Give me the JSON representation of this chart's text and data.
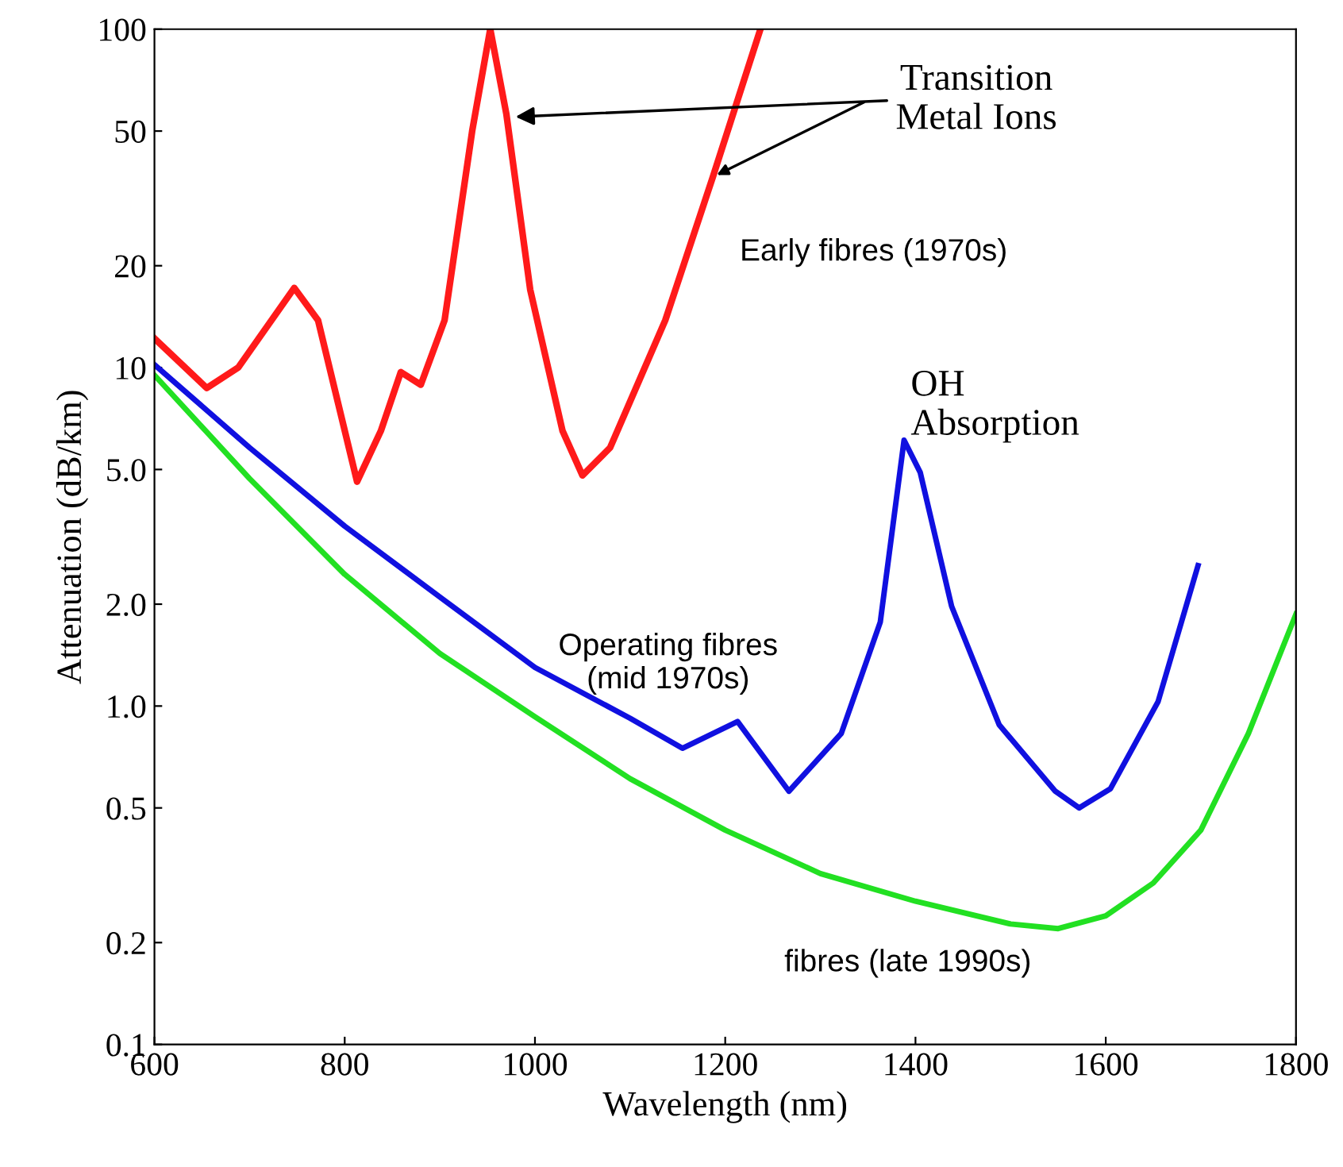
{
  "chart_data": {
    "type": "line",
    "xlabel": "Wavelength (nm)",
    "ylabel": "Attenuation (dB/km)",
    "log": "y",
    "grid": false,
    "legend": false,
    "marker": "none",
    "line_style": "solid",
    "xlim": [
      600,
      1800
    ],
    "xticks": [
      600,
      800,
      1000,
      1200,
      1400,
      1600,
      1800
    ],
    "ylim": [
      0.1,
      100
    ],
    "yticks": [
      0.1,
      0.2,
      0.5,
      {
        "value": 1,
        "label": "1.0"
      },
      {
        "value": 2,
        "label": "2.0"
      },
      {
        "value": 5,
        "label": "5.0"
      },
      10,
      20,
      50,
      100
    ],
    "series": [
      {
        "name": "Early fibres (1970s)",
        "color": "#ff1a1a",
        "x": [
          600,
          655,
          688,
          747,
          772,
          813,
          838,
          859,
          880,
          905,
          934,
          953,
          970,
          995,
          1029,
          1050,
          1079,
          1137,
          1187,
          1237
        ],
        "values": [
          12.2,
          8.7,
          10,
          17.2,
          13.8,
          4.6,
          6.5,
          9.7,
          8.9,
          13.8,
          50,
          100,
          56,
          17,
          6.5,
          4.8,
          5.8,
          13.8,
          36.6,
          100
        ]
      },
      {
        "name": "Operating fibres\n(mid 1970s)",
        "color": "#1010e0",
        "x": [
          600,
          700,
          800,
          900,
          1000,
          1100,
          1155,
          1213,
          1267,
          1322,
          1363,
          1388,
          1405,
          1438,
          1488,
          1547,
          1572,
          1605,
          1655,
          1697
        ],
        "values": [
          10.2,
          5.8,
          3.4,
          2.1,
          1.3,
          0.92,
          0.75,
          0.9,
          0.56,
          0.83,
          1.77,
          6.1,
          4.9,
          1.97,
          0.88,
          0.56,
          0.5,
          0.57,
          1.03,
          2.6
        ]
      },
      {
        "name": "fibres (late 1990s)",
        "color": "#22e022",
        "x": [
          600,
          700,
          800,
          900,
          1000,
          1100,
          1200,
          1300,
          1400,
          1500,
          1550,
          1600,
          1650,
          1700,
          1750,
          1800
        ],
        "values": [
          9.5,
          4.7,
          2.45,
          1.43,
          0.93,
          0.61,
          0.43,
          0.32,
          0.265,
          0.227,
          0.22,
          0.24,
          0.3,
          0.43,
          0.83,
          1.87
        ]
      }
    ],
    "annotations": [
      {
        "text": "Transition\nMetal Ions",
        "x": 975,
        "y": 55
      },
      {
        "text": "OH\nAbsorption",
        "x": 1395,
        "y": 6
      }
    ]
  }
}
